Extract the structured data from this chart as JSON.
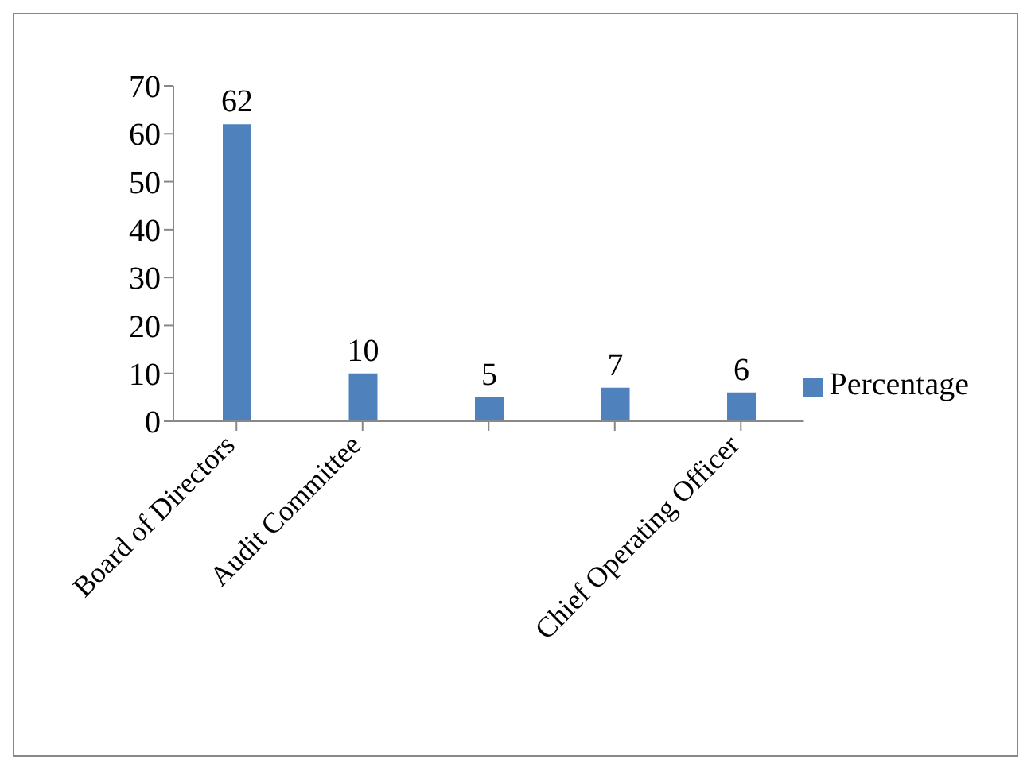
{
  "chart_data": {
    "type": "bar",
    "categories": [
      "Board of Directors",
      "Audit Committee",
      null,
      null,
      "Chief Operating Officer"
    ],
    "series": [
      {
        "name": "Percentage",
        "color": "#4f81bd",
        "values": [
          62,
          10,
          5,
          7,
          6
        ]
      }
    ],
    "ylim": [
      0,
      70
    ],
    "yticks": [
      0,
      10,
      20,
      30,
      40,
      50,
      60,
      70
    ],
    "data_labels": true,
    "legend": "right",
    "grid": false
  }
}
